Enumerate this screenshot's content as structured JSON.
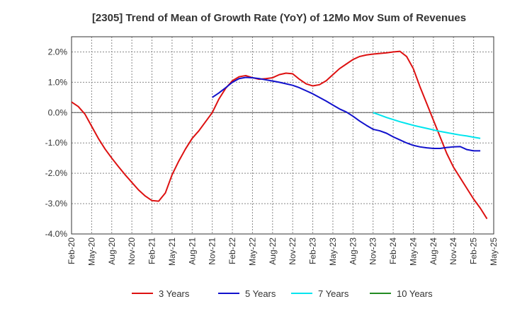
{
  "chart_data": {
    "type": "line",
    "title": "[2305]  Trend of Mean of Growth Rate (YoY) of 12Mo Mov Sum of Revenues",
    "xlabel": "",
    "ylabel": "",
    "ylim": [
      -4.0,
      2.5
    ],
    "yticks": [
      2.0,
      1.0,
      0.0,
      -1.0,
      -2.0,
      -3.0,
      -4.0
    ],
    "ytick_labels": [
      "2.0%",
      "1.0%",
      "0.0%",
      "-1.0%",
      "-2.0%",
      "-3.0%",
      "-4.0%"
    ],
    "xlim": [
      "Feb-20",
      "May-25"
    ],
    "xtick_labels": [
      "Feb-20",
      "May-20",
      "Aug-20",
      "Nov-20",
      "Feb-21",
      "May-21",
      "Aug-21",
      "Nov-21",
      "Feb-22",
      "May-22",
      "Aug-22",
      "Nov-22",
      "Feb-23",
      "May-23",
      "Aug-23",
      "Nov-23",
      "Feb-24",
      "May-24",
      "Aug-24",
      "Nov-24",
      "Feb-25",
      "May-25"
    ],
    "grid": "dashed",
    "legend_position": "bottom",
    "series": [
      {
        "name": "3 Years",
        "color": "#dd1111",
        "points": [
          [
            "Feb-20",
            0.35
          ],
          [
            "Mar-20",
            0.2
          ],
          [
            "Apr-20",
            -0.05
          ],
          [
            "May-20",
            -0.45
          ],
          [
            "Jun-20",
            -0.85
          ],
          [
            "Jul-20",
            -1.2
          ],
          [
            "Aug-20",
            -1.5
          ],
          [
            "Sep-20",
            -1.78
          ],
          [
            "Oct-20",
            -2.05
          ],
          [
            "Nov-20",
            -2.3
          ],
          [
            "Dec-20",
            -2.55
          ],
          [
            "Jan-21",
            -2.75
          ],
          [
            "Feb-21",
            -2.9
          ],
          [
            "Mar-21",
            -2.92
          ],
          [
            "Apr-21",
            -2.65
          ],
          [
            "May-21",
            -2.05
          ],
          [
            "Jun-21",
            -1.6
          ],
          [
            "Jul-21",
            -1.2
          ],
          [
            "Aug-21",
            -0.85
          ],
          [
            "Sep-21",
            -0.6
          ],
          [
            "Oct-21",
            -0.3
          ],
          [
            "Nov-21",
            0.0
          ],
          [
            "Dec-21",
            0.45
          ],
          [
            "Jan-22",
            0.8
          ],
          [
            "Feb-22",
            1.05
          ],
          [
            "Mar-22",
            1.18
          ],
          [
            "Apr-22",
            1.22
          ],
          [
            "May-22",
            1.15
          ],
          [
            "Jun-22",
            1.1
          ],
          [
            "Jul-22",
            1.12
          ],
          [
            "Aug-22",
            1.15
          ],
          [
            "Sep-22",
            1.25
          ],
          [
            "Oct-22",
            1.3
          ],
          [
            "Nov-22",
            1.28
          ],
          [
            "Dec-22",
            1.1
          ],
          [
            "Jan-23",
            0.95
          ],
          [
            "Feb-23",
            0.88
          ],
          [
            "Mar-23",
            0.92
          ],
          [
            "Apr-23",
            1.05
          ],
          [
            "May-23",
            1.25
          ],
          [
            "Jun-23",
            1.45
          ],
          [
            "Jul-23",
            1.6
          ],
          [
            "Aug-23",
            1.75
          ],
          [
            "Sep-23",
            1.85
          ],
          [
            "Oct-23",
            1.9
          ],
          [
            "Nov-23",
            1.93
          ],
          [
            "Dec-23",
            1.95
          ],
          [
            "Jan-24",
            1.97
          ],
          [
            "Feb-24",
            2.0
          ],
          [
            "Mar-24",
            2.02
          ],
          [
            "Apr-24",
            1.85
          ],
          [
            "May-24",
            1.45
          ],
          [
            "Jun-24",
            0.85
          ],
          [
            "Jul-24",
            0.3
          ],
          [
            "Aug-24",
            -0.25
          ],
          [
            "Sep-24",
            -0.8
          ],
          [
            "Oct-24",
            -1.35
          ],
          [
            "Nov-24",
            -1.8
          ],
          [
            "Dec-24",
            -2.15
          ],
          [
            "Jan-25",
            -2.5
          ],
          [
            "Feb-25",
            -2.85
          ],
          [
            "Mar-25",
            -3.15
          ],
          [
            "Apr-25",
            -3.5
          ]
        ]
      },
      {
        "name": "5 Years",
        "color": "#1111cc",
        "points": [
          [
            "Nov-21",
            0.5
          ],
          [
            "Dec-21",
            0.65
          ],
          [
            "Jan-22",
            0.82
          ],
          [
            "Feb-22",
            1.0
          ],
          [
            "Mar-22",
            1.12
          ],
          [
            "Apr-22",
            1.16
          ],
          [
            "May-22",
            1.15
          ],
          [
            "Jun-22",
            1.12
          ],
          [
            "Jul-22",
            1.08
          ],
          [
            "Aug-22",
            1.04
          ],
          [
            "Sep-22",
            1.0
          ],
          [
            "Oct-22",
            0.95
          ],
          [
            "Nov-22",
            0.9
          ],
          [
            "Dec-22",
            0.82
          ],
          [
            "Jan-23",
            0.72
          ],
          [
            "Feb-23",
            0.62
          ],
          [
            "Mar-23",
            0.5
          ],
          [
            "Apr-23",
            0.38
          ],
          [
            "May-23",
            0.25
          ],
          [
            "Jun-23",
            0.12
          ],
          [
            "Jul-23",
            0.02
          ],
          [
            "Aug-23",
            -0.12
          ],
          [
            "Sep-23",
            -0.28
          ],
          [
            "Oct-23",
            -0.42
          ],
          [
            "Nov-23",
            -0.55
          ],
          [
            "Dec-23",
            -0.6
          ],
          [
            "Jan-24",
            -0.68
          ],
          [
            "Feb-24",
            -0.8
          ],
          [
            "Mar-24",
            -0.9
          ],
          [
            "Apr-24",
            -1.0
          ],
          [
            "May-24",
            -1.08
          ],
          [
            "Jun-24",
            -1.13
          ],
          [
            "Jul-24",
            -1.16
          ],
          [
            "Aug-24",
            -1.18
          ],
          [
            "Sep-24",
            -1.18
          ],
          [
            "Oct-24",
            -1.15
          ],
          [
            "Nov-24",
            -1.13
          ],
          [
            "Dec-24",
            -1.12
          ],
          [
            "Jan-25",
            -1.22
          ],
          [
            "Feb-25",
            -1.26
          ],
          [
            "Mar-25",
            -1.26
          ]
        ]
      },
      {
        "name": "7 Years",
        "color": "#00e5ee",
        "points": [
          [
            "Nov-23",
            0.0
          ],
          [
            "Dec-23",
            -0.08
          ],
          [
            "Jan-24",
            -0.16
          ],
          [
            "Feb-24",
            -0.23
          ],
          [
            "Mar-24",
            -0.3
          ],
          [
            "Apr-24",
            -0.36
          ],
          [
            "May-24",
            -0.42
          ],
          [
            "Jun-24",
            -0.47
          ],
          [
            "Jul-24",
            -0.52
          ],
          [
            "Aug-24",
            -0.57
          ],
          [
            "Sep-24",
            -0.62
          ],
          [
            "Oct-24",
            -0.66
          ],
          [
            "Nov-24",
            -0.7
          ],
          [
            "Dec-24",
            -0.74
          ],
          [
            "Jan-25",
            -0.77
          ],
          [
            "Feb-25",
            -0.81
          ],
          [
            "Mar-25",
            -0.85
          ]
        ]
      },
      {
        "name": "10 Years",
        "color": "#228b22",
        "points": []
      }
    ]
  }
}
